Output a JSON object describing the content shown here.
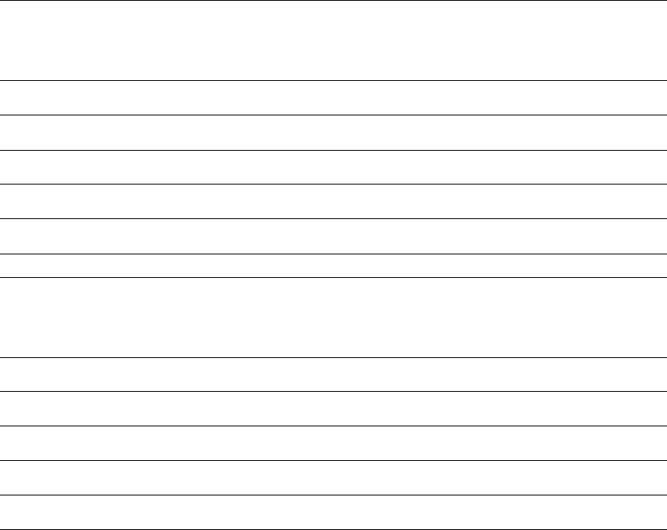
{
  "table": {
    "rule_color": "#000000"
  }
}
